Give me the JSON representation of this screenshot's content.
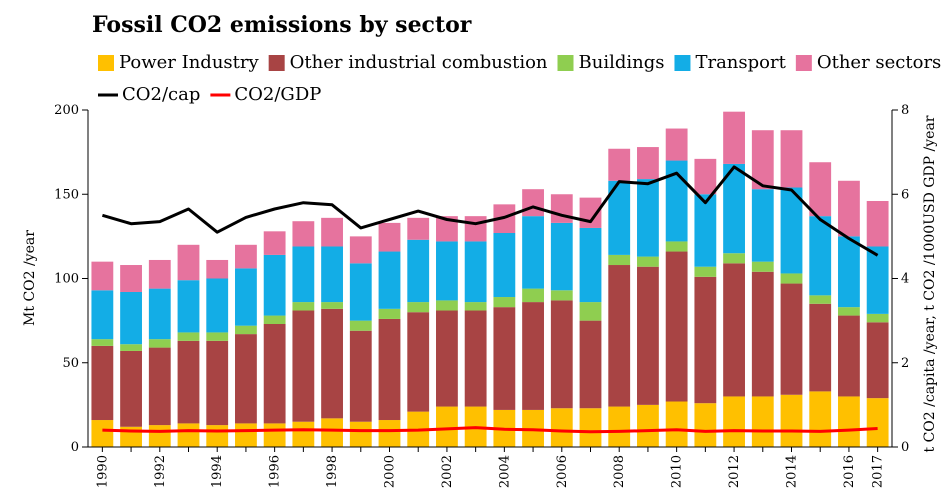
{
  "chart_data": {
    "type": "bar",
    "stacked": true,
    "title": "Fossil CO2 emissions by sector",
    "ylabel_left": "Mt CO2 /year",
    "ylabel_right": "t CO2 /capita /year, t CO2 /1000USD GDP /year",
    "ylim_left": [
      0,
      200
    ],
    "ylim_right": [
      0,
      8
    ],
    "yticks_left": [
      "0",
      "50",
      "100",
      "150",
      "200"
    ],
    "yticks_right": [
      "0",
      "2",
      "4",
      "6",
      "8"
    ],
    "grid": false,
    "legend_position": "top",
    "categories": [
      "1990",
      "1991",
      "1992",
      "1993",
      "1994",
      "1995",
      "1996",
      "1997",
      "1998",
      "1999",
      "2000",
      "2001",
      "2002",
      "2003",
      "2004",
      "2005",
      "2006",
      "2007",
      "2008",
      "2009",
      "2010",
      "2011",
      "2012",
      "2013",
      "2014",
      "2015",
      "2016",
      "2017"
    ],
    "xtick_labels": [
      "1990",
      "",
      "1992",
      "",
      "1994",
      "",
      "1996",
      "",
      "1998",
      "",
      "2000",
      "",
      "2002",
      "",
      "2004",
      "",
      "2006",
      "",
      "2008",
      "",
      "2010",
      "",
      "2012",
      "",
      "2014",
      "",
      "2016",
      "2017"
    ],
    "series": [
      {
        "name": "Power Industry",
        "color": "#FFC000",
        "values": [
          16,
          12,
          13,
          14,
          13,
          14,
          14,
          15,
          17,
          15,
          16,
          21,
          24,
          24,
          22,
          22,
          23,
          23,
          24,
          25,
          27,
          26,
          30,
          30,
          31,
          33,
          30,
          29
        ]
      },
      {
        "name": "Other industrial combustion",
        "color": "#A84444",
        "values": [
          44,
          45,
          46,
          49,
          50,
          53,
          59,
          66,
          65,
          54,
          60,
          59,
          57,
          57,
          61,
          64,
          64,
          52,
          84,
          82,
          89,
          75,
          79,
          74,
          66,
          52,
          48,
          45
        ]
      },
      {
        "name": "Buildings",
        "color": "#8FCE50",
        "values": [
          4,
          4,
          5,
          5,
          5,
          5,
          5,
          5,
          4,
          6,
          6,
          6,
          6,
          5,
          6,
          8,
          6,
          11,
          6,
          6,
          6,
          6,
          6,
          6,
          6,
          5,
          5,
          5
        ]
      },
      {
        "name": "Transport",
        "color": "#13ADE6",
        "values": [
          29,
          31,
          30,
          31,
          32,
          34,
          36,
          33,
          33,
          34,
          34,
          37,
          35,
          36,
          38,
          43,
          40,
          44,
          44,
          46,
          48,
          43,
          53,
          43,
          51,
          47,
          42,
          40
        ]
      },
      {
        "name": "Other sectors",
        "color": "#E6739E",
        "values": [
          17,
          16,
          17,
          21,
          11,
          14,
          14,
          15,
          17,
          16,
          17,
          13,
          15,
          15,
          17,
          16,
          17,
          18,
          19,
          19,
          19,
          21,
          31,
          35,
          34,
          32,
          33,
          27
        ]
      }
    ],
    "lines": [
      {
        "name": "CO2/cap",
        "color": "#000000",
        "axis": "right",
        "values": [
          5.5,
          5.3,
          5.35,
          5.65,
          5.1,
          5.45,
          5.65,
          5.8,
          5.75,
          5.2,
          5.4,
          5.6,
          5.4,
          5.3,
          5.45,
          5.7,
          5.5,
          5.35,
          6.3,
          6.25,
          6.5,
          5.8,
          6.65,
          6.2,
          6.1,
          5.4,
          4.95,
          4.55
        ]
      },
      {
        "name": "CO2/GDP",
        "color": "#FF0000",
        "axis": "right",
        "values": [
          0.4,
          0.38,
          0.37,
          0.39,
          0.38,
          0.39,
          0.4,
          0.41,
          0.4,
          0.39,
          0.39,
          0.4,
          0.43,
          0.46,
          0.42,
          0.41,
          0.38,
          0.36,
          0.37,
          0.39,
          0.41,
          0.37,
          0.39,
          0.38,
          0.38,
          0.37,
          0.4,
          0.44
        ]
      }
    ]
  }
}
